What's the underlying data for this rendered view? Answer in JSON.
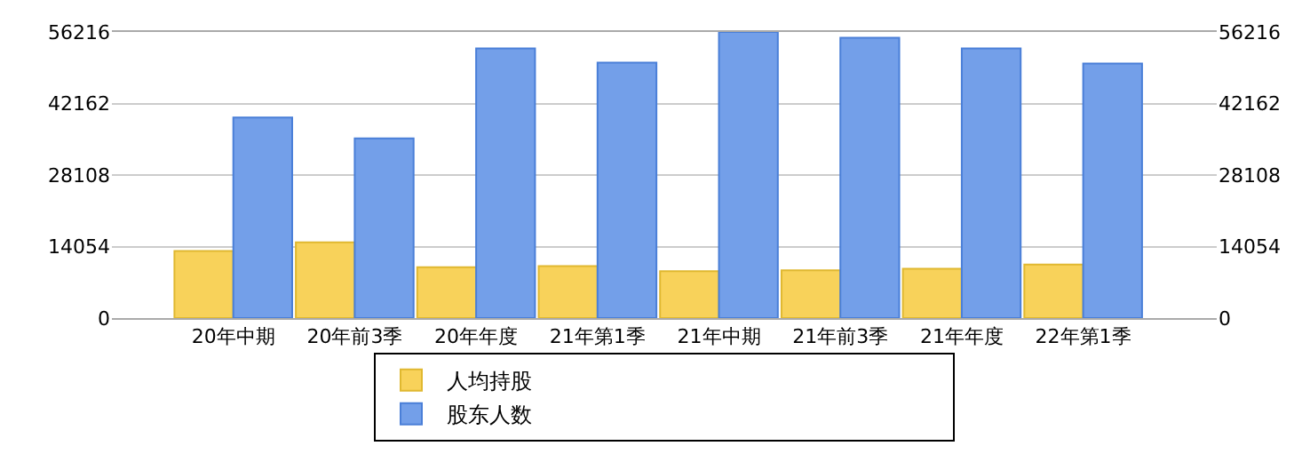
{
  "chart_data": {
    "type": "bar",
    "categories": [
      "20年中期",
      "20年前3季",
      "20年年度",
      "21年第1季",
      "21年中期",
      "21年前3季",
      "21年年度",
      "22年第1季"
    ],
    "series": [
      {
        "name": "人均持股",
        "color": "#f8d25a",
        "values": [
          13200,
          14900,
          10000,
          10200,
          9200,
          9400,
          9700,
          10500
        ]
      },
      {
        "name": "股东人数",
        "color": "#739fe9",
        "axis": "y2",
        "values": [
          39400,
          35300,
          53000,
          50200,
          56200,
          55100,
          53000,
          50000
        ]
      }
    ],
    "ylim": [
      0,
      56216
    ],
    "yticks": [
      0,
      14054,
      28108,
      42162,
      56216
    ],
    "y2lim": [
      0,
      56216
    ],
    "y2ticks": [
      0,
      14054,
      28108,
      42162,
      56216
    ],
    "grid": "y",
    "legend": "bottom"
  }
}
